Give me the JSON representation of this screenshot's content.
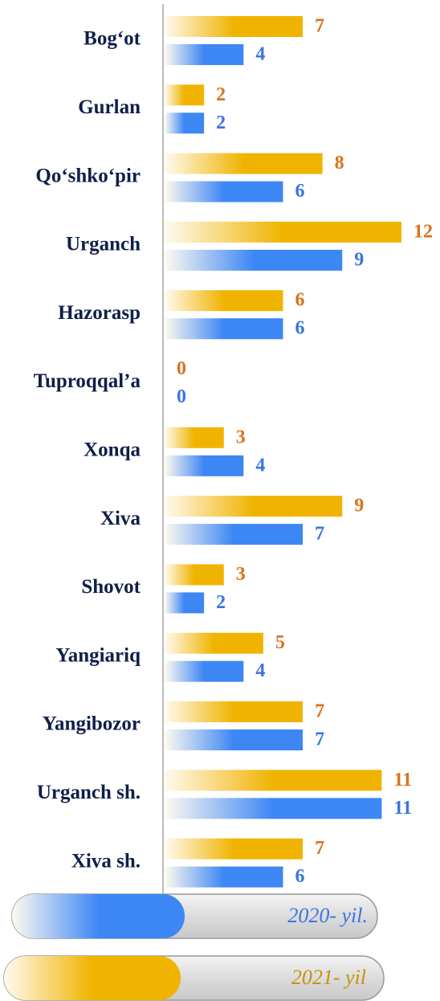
{
  "chart_data": {
    "type": "bar",
    "orientation": "horizontal",
    "categories": [
      "Bog‘ot",
      "Gurlan",
      "Qo‘shko‘pir",
      "Urganch",
      "Hazorasp",
      "Tuproqqal’a",
      "Xonqa",
      "Xiva",
      "Shovot",
      "Yangiariq",
      "Yangibozor",
      "Urganch sh.",
      "Xiva sh."
    ],
    "series": [
      {
        "name": "2020- yil.",
        "color": "#3d87f5",
        "label_color": "#3a74e0",
        "values": [
          4,
          2,
          6,
          9,
          6,
          0,
          4,
          7,
          2,
          4,
          7,
          11,
          6
        ]
      },
      {
        "name": "2021- yil",
        "color": "#f0b400",
        "label_color": "#d9731a",
        "values": [
          7,
          2,
          8,
          12,
          6,
          0,
          3,
          9,
          3,
          5,
          7,
          11,
          7
        ]
      }
    ],
    "xlim": [
      0,
      12
    ]
  }
}
